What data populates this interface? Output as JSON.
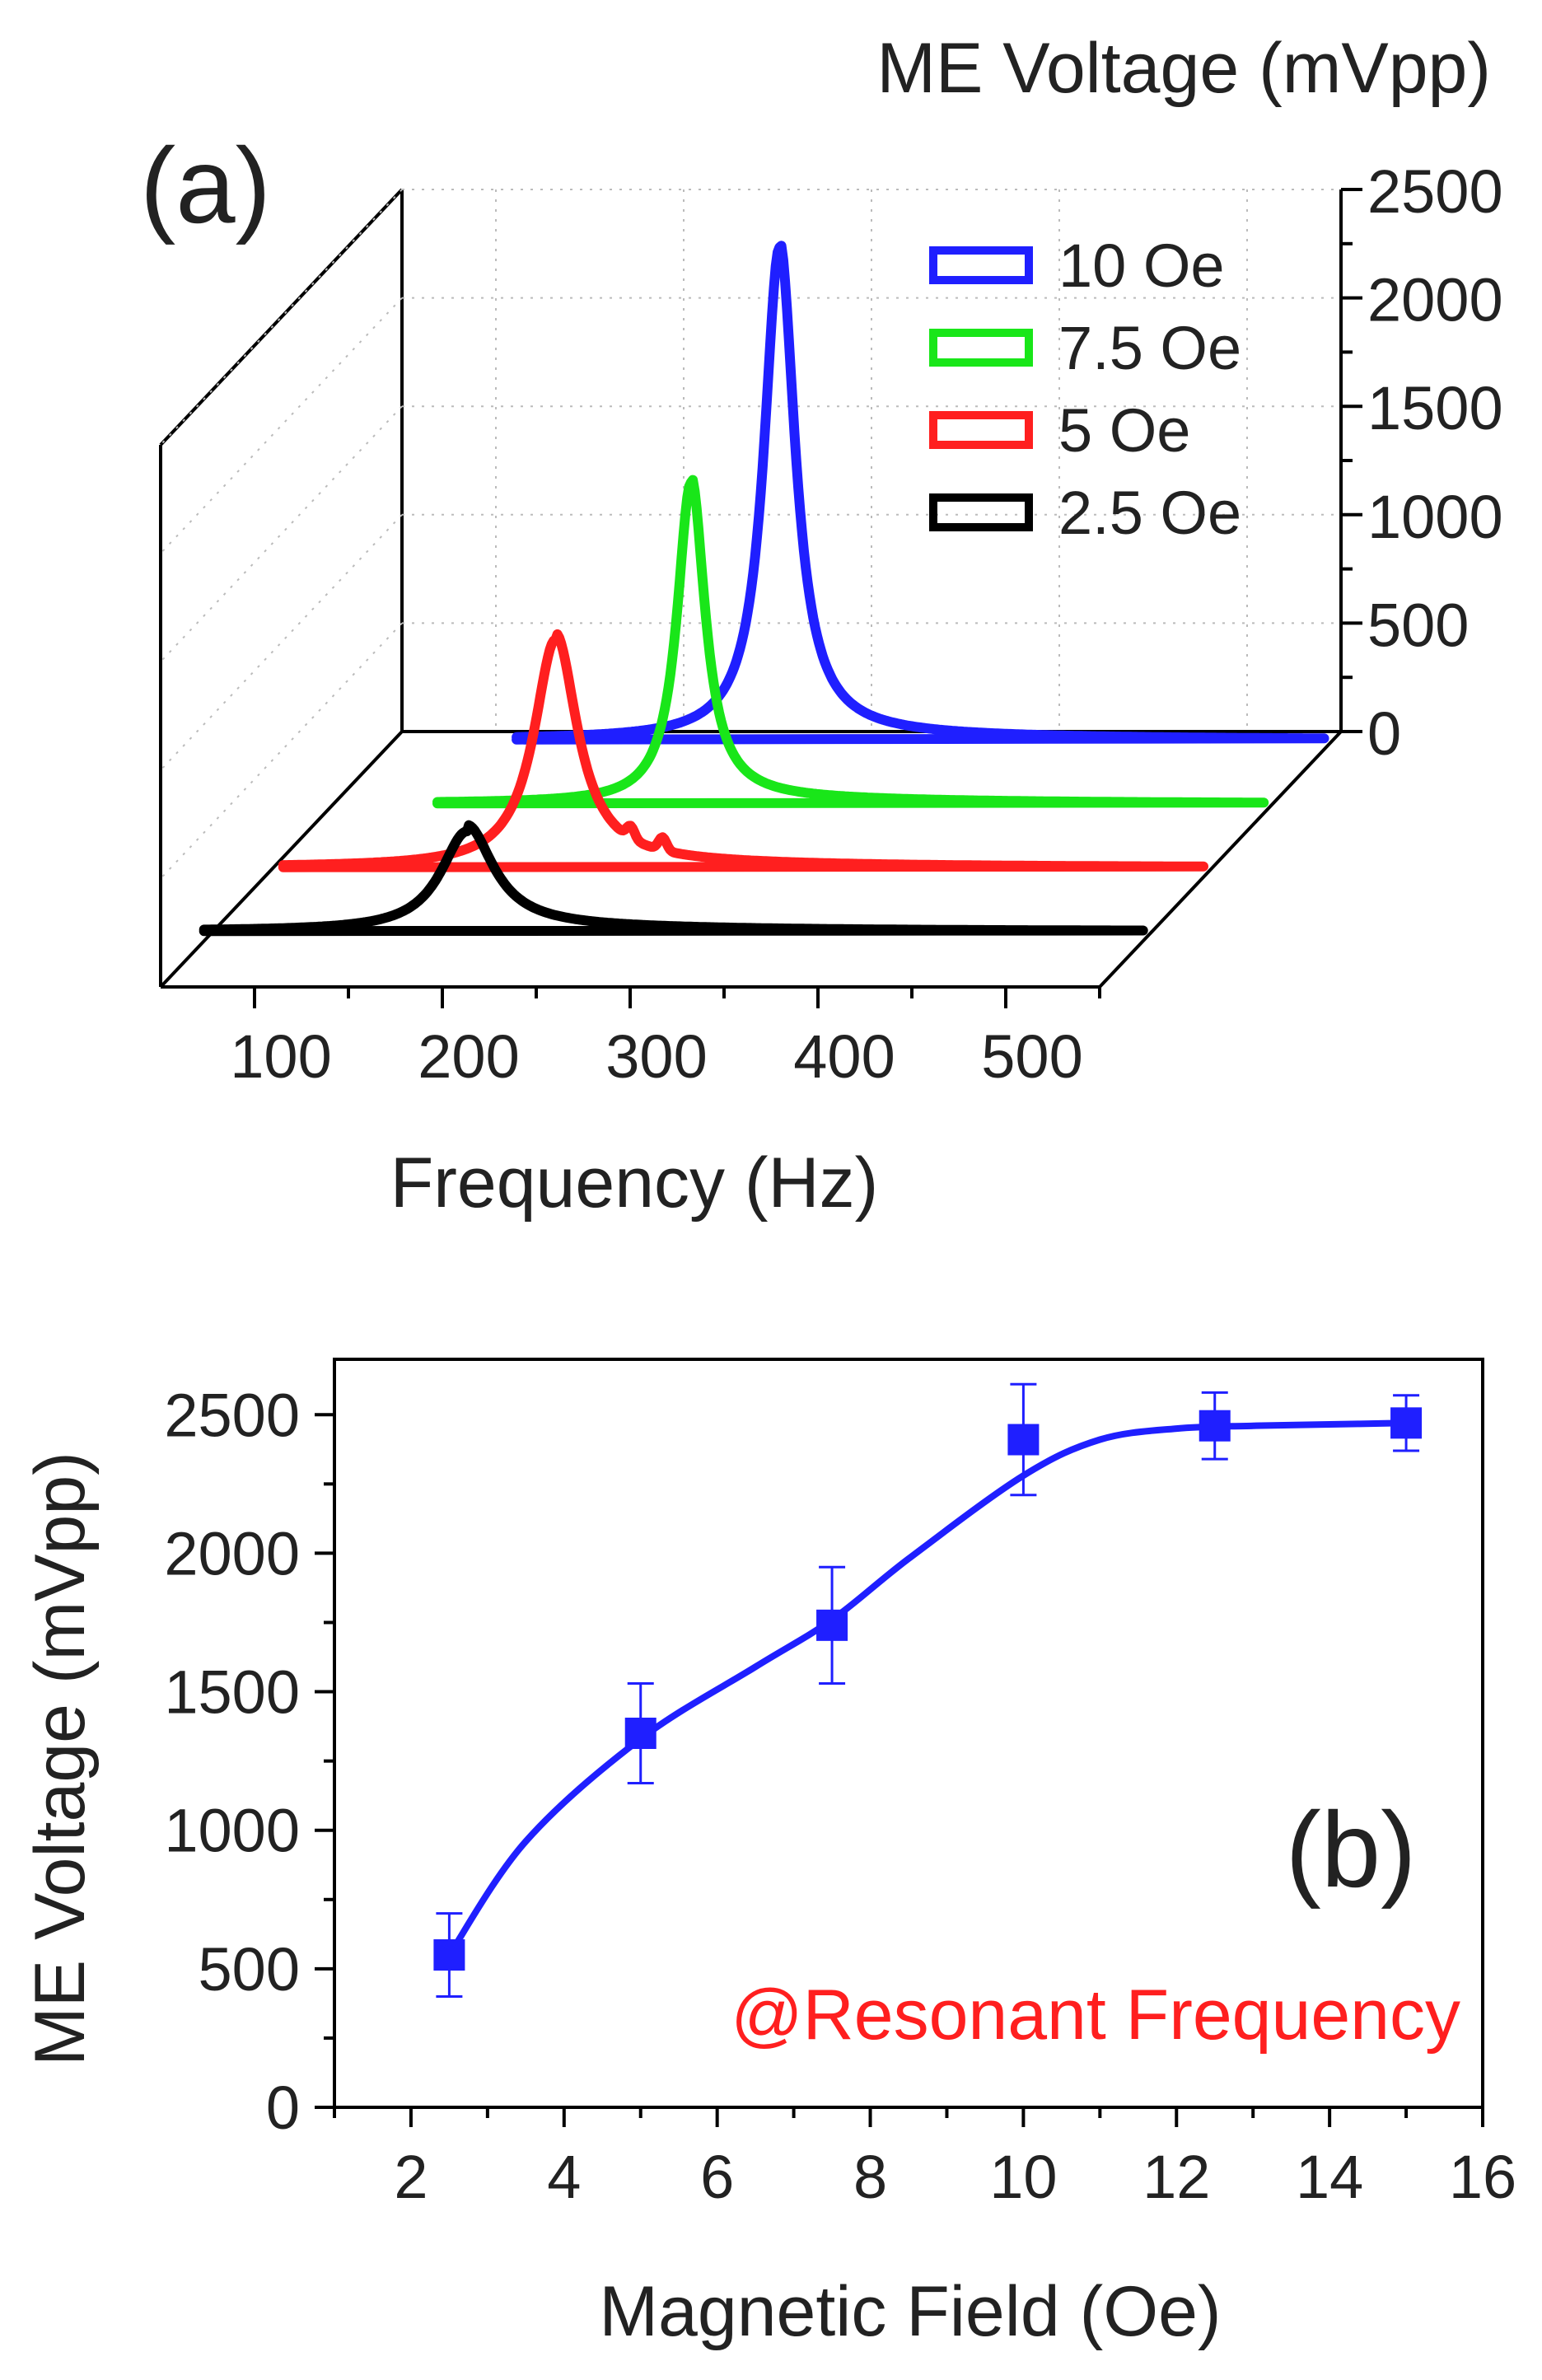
{
  "chart_data": [
    {
      "panel": "(a)",
      "type": "line",
      "xlabel": "Frequency (Hz)",
      "zlabel": "ME Voltage (mVpp)",
      "xlim": [
        50,
        550
      ],
      "zlim": [
        0,
        2500
      ],
      "x_ticks": [
        "100",
        "200",
        "300",
        "400",
        "500"
      ],
      "z_ticks": [
        "0",
        "500",
        "1000",
        "1500",
        "2000",
        "2500"
      ],
      "legend_position": "top-right",
      "colors": {
        "10 Oe": "#1f1fff",
        "7.5 Oe": "#19e619",
        "5 Oe": "#ff1f1f",
        "2.5 Oe": "#000000"
      },
      "series": [
        {
          "name": "10 Oe",
          "color": "#1f1fff",
          "peak_frequency": 260,
          "peak_voltage": 2270,
          "halfwidth": 10,
          "start_frequency": 120,
          "x": [
            120,
            180,
            220,
            240,
            250,
            255,
            260,
            265,
            270,
            280,
            300,
            350,
            400,
            450,
            500,
            550
          ],
          "y": [
            20,
            60,
            150,
            330,
            680,
            1320,
            2270,
            1320,
            700,
            420,
            230,
            110,
            70,
            50,
            40,
            30
          ]
        },
        {
          "name": "7.5 Oe",
          "color": "#19e619",
          "peak_frequency": 245,
          "peak_voltage": 1480,
          "halfwidth": 9,
          "start_frequency": 110,
          "x": [
            110,
            170,
            210,
            230,
            240,
            245,
            250,
            260,
            280,
            320,
            400,
            450,
            500,
            550
          ],
          "y": [
            20,
            50,
            130,
            280,
            760,
            1480,
            760,
            290,
            160,
            90,
            55,
            45,
            35,
            30
          ]
        },
        {
          "name": "5 Oe",
          "color": "#ff1f1f",
          "peak_frequency": 205,
          "peak_voltage": 1050,
          "halfwidth": 14,
          "start_frequency": 60,
          "x": [
            60,
            120,
            170,
            190,
            200,
            205,
            210,
            220,
            240,
            260,
            300,
            400,
            500,
            550
          ],
          "y": [
            20,
            80,
            250,
            540,
            870,
            1050,
            900,
            560,
            260,
            190,
            120,
            70,
            40,
            30
          ]
        },
        {
          "name": "2.5 Oe",
          "color": "#000000",
          "peak_frequency": 190,
          "peak_voltage": 460,
          "halfwidth": 17,
          "start_frequency": 50,
          "x": [
            50,
            100,
            150,
            170,
            180,
            190,
            200,
            210,
            230,
            260,
            300,
            400,
            500,
            550
          ],
          "y": [
            10,
            40,
            120,
            230,
            370,
            460,
            380,
            240,
            120,
            70,
            45,
            30,
            20,
            15
          ]
        }
      ]
    },
    {
      "panel": "(b)",
      "type": "scatter",
      "xlabel": "Magnetic Field (Oe)",
      "ylabel": "ME Voltage (mVpp)",
      "annotation": "@Resonant Frequency",
      "xlim": [
        1,
        16
      ],
      "ylim": [
        0,
        2700
      ],
      "x_ticks": [
        2,
        4,
        6,
        8,
        10,
        12,
        14,
        16
      ],
      "y_ticks": [
        0,
        500,
        1000,
        1500,
        2000,
        2500
      ],
      "series": [
        {
          "color": "#1f1fff",
          "x": [
            2.5,
            5,
            7.5,
            10,
            12.5,
            15
          ],
          "y": [
            550,
            1350,
            1740,
            2410,
            2460,
            2470
          ],
          "error": [
            150,
            180,
            210,
            200,
            120,
            100
          ]
        }
      ],
      "fit": {
        "x": [
          2.5,
          3.5,
          5,
          6.5,
          7.5,
          8.5,
          10,
          11,
          12,
          13,
          14,
          15
        ],
        "y": [
          550,
          960,
          1330,
          1590,
          1760,
          1980,
          2280,
          2410,
          2450,
          2460,
          2465,
          2470
        ]
      }
    }
  ]
}
